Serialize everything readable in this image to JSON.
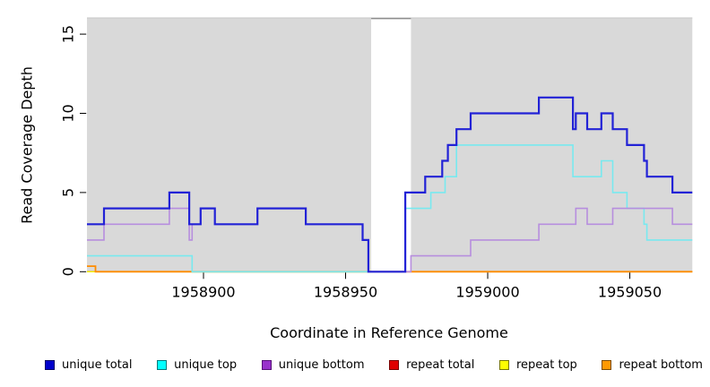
{
  "figure": {
    "xlabel": "Coordinate in Reference Genome",
    "ylabel": "Read Coverage Depth"
  },
  "chart_data": {
    "type": "line",
    "subtype": "step",
    "title": "",
    "xlabel": "Coordinate in Reference Genome",
    "ylabel": "Read Coverage Depth",
    "xlim": [
      1958859,
      1959072
    ],
    "ylim": [
      0,
      16
    ],
    "x_ticks": [
      1958900,
      1958950,
      1959000,
      1959050
    ],
    "y_ticks": [
      0,
      5,
      10,
      15
    ],
    "grid": false,
    "legend_position": "bottom",
    "plot_bg": "#d9d9d9",
    "top_border_color": "#c6c6c6",
    "gap_region": {
      "from": 1958959,
      "to": 1958973,
      "color": "#ffffff",
      "cap_color": "#8c8c8c"
    },
    "baseline_overlap_segment": {
      "from": 1958896,
      "to": 1958959,
      "value": 0,
      "color": "#8ecf8e"
    },
    "draw_order": [
      3,
      4,
      5,
      1,
      2,
      0
    ],
    "series": [
      {
        "name": "unique total",
        "color": "#2222d6",
        "width": 2.2,
        "steps": [
          [
            1958859,
            3
          ],
          [
            1958865,
            4
          ],
          [
            1958888,
            5
          ],
          [
            1958895,
            3
          ],
          [
            1958899,
            4
          ],
          [
            1958904,
            3
          ],
          [
            1958919,
            4
          ],
          [
            1958936,
            3
          ],
          [
            1958956,
            2
          ],
          [
            1958958,
            0
          ],
          [
            1958971,
            5
          ],
          [
            1958978,
            6
          ],
          [
            1958984,
            7
          ],
          [
            1958986,
            8
          ],
          [
            1958989,
            9
          ],
          [
            1958994,
            10
          ],
          [
            1959018,
            11
          ],
          [
            1959030,
            9
          ],
          [
            1959031,
            10
          ],
          [
            1959035,
            9
          ],
          [
            1959040,
            10
          ],
          [
            1959044,
            9
          ],
          [
            1959049,
            8
          ],
          [
            1959055,
            7
          ],
          [
            1959056,
            6
          ],
          [
            1959065,
            5
          ]
        ]
      },
      {
        "name": "unique top",
        "color": "#78e9ef",
        "width": 1.6,
        "steps": [
          [
            1958859,
            1
          ],
          [
            1958896,
            0
          ],
          [
            1958971,
            4
          ],
          [
            1958980,
            5
          ],
          [
            1958985,
            6
          ],
          [
            1958989,
            8
          ],
          [
            1959030,
            6
          ],
          [
            1959040,
            7
          ],
          [
            1959044,
            5
          ],
          [
            1959049,
            4
          ],
          [
            1959055,
            3
          ],
          [
            1959056,
            2
          ]
        ]
      },
      {
        "name": "unique bottom",
        "color": "#b78ede",
        "width": 1.6,
        "steps": [
          [
            1958859,
            2
          ],
          [
            1958865,
            3
          ],
          [
            1958888,
            4
          ],
          [
            1958895,
            2
          ],
          [
            1958896,
            3
          ],
          [
            1958899,
            4
          ],
          [
            1958904,
            3
          ],
          [
            1958919,
            4
          ],
          [
            1958936,
            3
          ],
          [
            1958956,
            2
          ],
          [
            1958958,
            0
          ],
          [
            1958973,
            1
          ],
          [
            1958994,
            2
          ],
          [
            1959018,
            3
          ],
          [
            1959031,
            4
          ],
          [
            1959035,
            3
          ],
          [
            1959044,
            4
          ],
          [
            1959065,
            3
          ]
        ]
      },
      {
        "name": "repeat total",
        "color": "#dd0000",
        "width": 1.4,
        "steps": [
          [
            1958859,
            0
          ]
        ]
      },
      {
        "name": "repeat top",
        "color": "#f5f500",
        "width": 1.4,
        "steps": [
          [
            1958859,
            0
          ]
        ]
      },
      {
        "name": "repeat bottom",
        "color": "#ff8c00",
        "width": 1.8,
        "steps": [
          [
            1958859,
            0.35
          ],
          [
            1958862,
            0
          ]
        ]
      }
    ]
  },
  "legend": {
    "items": [
      {
        "label": "unique total",
        "fill": "#0000cc",
        "border": "#000066"
      },
      {
        "label": "unique top",
        "fill": "#00ffff",
        "border": "#007777"
      },
      {
        "label": "unique bottom",
        "fill": "#9932cc",
        "border": "#551177"
      },
      {
        "label": "repeat total",
        "fill": "#e00000",
        "border": "#770000"
      },
      {
        "label": "repeat top",
        "fill": "#ffff00",
        "border": "#777700"
      },
      {
        "label": "repeat bottom",
        "fill": "#ff9900",
        "border": "#7a4a00"
      }
    ]
  }
}
